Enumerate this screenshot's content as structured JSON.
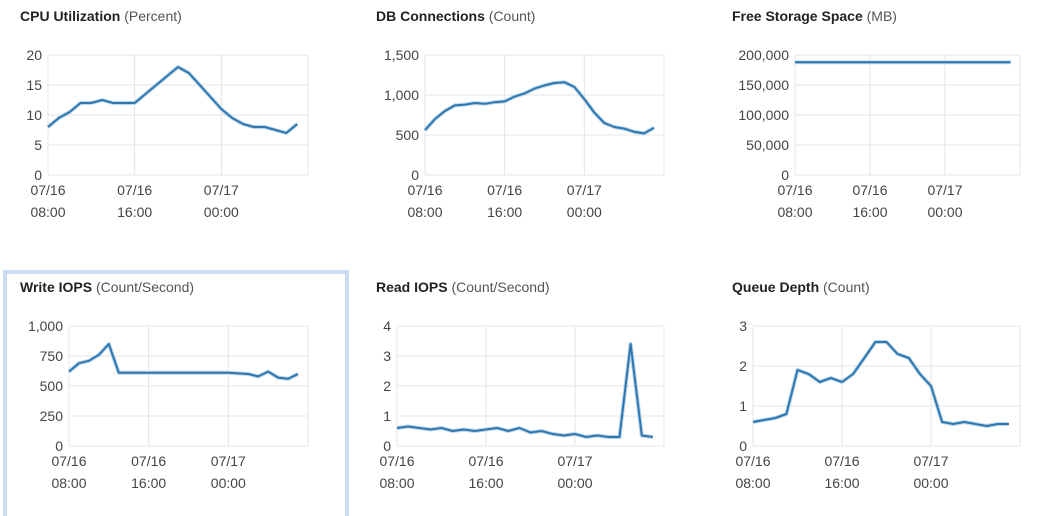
{
  "chart_data": [
    {
      "type": "line",
      "title": "CPU Utilization",
      "unit": "(Percent)",
      "color": "#2b78b3",
      "grid": true,
      "x": [
        "07/16 08:00",
        "07/16 09:00",
        "07/16 10:00",
        "07/16 11:00",
        "07/16 12:00",
        "07/16 13:00",
        "07/16 14:00",
        "07/16 15:00",
        "07/16 16:00",
        "07/16 17:00",
        "07/16 18:00",
        "07/16 19:00",
        "07/16 20:00",
        "07/16 21:00",
        "07/16 22:00",
        "07/16 23:00",
        "07/17 00:00",
        "07/17 01:00",
        "07/17 02:00",
        "07/17 03:00",
        "07/17 04:00",
        "07/17 05:00",
        "07/17 06:00",
        "07/17 07:00"
      ],
      "values": [
        8,
        9.5,
        10.5,
        12,
        12,
        12.5,
        12,
        12,
        12,
        13.5,
        15,
        16.5,
        18,
        17,
        15,
        13,
        11,
        9.5,
        8.5,
        8,
        8,
        7.5,
        7,
        8.5
      ],
      "xlim": [
        "07/16 08:00",
        "07/17 08:00"
      ],
      "xticks": [
        "07/16 08:00",
        "07/16 16:00",
        "07/17 00:00"
      ],
      "ylim": [
        0,
        20
      ],
      "yticks": [
        0,
        5,
        10,
        15,
        20
      ]
    },
    {
      "type": "line",
      "title": "DB Connections",
      "unit": "(Count)",
      "color": "#2b78b3",
      "grid": true,
      "x": [
        "07/16 08:00",
        "07/16 09:00",
        "07/16 10:00",
        "07/16 11:00",
        "07/16 12:00",
        "07/16 13:00",
        "07/16 14:00",
        "07/16 15:00",
        "07/16 16:00",
        "07/16 17:00",
        "07/16 18:00",
        "07/16 19:00",
        "07/16 20:00",
        "07/16 21:00",
        "07/16 22:00",
        "07/16 23:00",
        "07/17 00:00",
        "07/17 01:00",
        "07/17 02:00",
        "07/17 03:00",
        "07/17 04:00",
        "07/17 05:00",
        "07/17 06:00",
        "07/17 07:00"
      ],
      "values": [
        560,
        700,
        800,
        870,
        880,
        900,
        890,
        910,
        920,
        980,
        1020,
        1080,
        1120,
        1150,
        1160,
        1100,
        950,
        780,
        650,
        600,
        580,
        540,
        520,
        590
      ],
      "xlim": [
        "07/16 08:00",
        "07/17 08:00"
      ],
      "xticks": [
        "07/16 08:00",
        "07/16 16:00",
        "07/17 00:00"
      ],
      "ylim": [
        0,
        1500
      ],
      "yticks": [
        0,
        500,
        {
          "value": 1000,
          "label": "1,000"
        },
        {
          "value": 1500,
          "label": "1,500"
        }
      ]
    },
    {
      "type": "line",
      "title": "Free Storage Space",
      "unit": "(MB)",
      "color": "#2b78b3",
      "grid": true,
      "x": [
        "07/16 08:00",
        "07/16 09:00",
        "07/16 10:00",
        "07/16 11:00",
        "07/16 12:00",
        "07/16 13:00",
        "07/16 14:00",
        "07/16 15:00",
        "07/16 16:00",
        "07/16 17:00",
        "07/16 18:00",
        "07/16 19:00",
        "07/16 20:00",
        "07/16 21:00",
        "07/16 22:00",
        "07/16 23:00",
        "07/17 00:00",
        "07/17 01:00",
        "07/17 02:00",
        "07/17 03:00",
        "07/17 04:00",
        "07/17 05:00",
        "07/17 06:00",
        "07/17 07:00"
      ],
      "values": [
        188000,
        188000,
        188000,
        188000,
        188000,
        188000,
        188000,
        188000,
        188000,
        188000,
        188000,
        188000,
        188000,
        188000,
        188000,
        188000,
        188000,
        188000,
        188000,
        188000,
        188000,
        188000,
        188000,
        188000
      ],
      "xlim": [
        "07/16 08:00",
        "07/17 08:00"
      ],
      "xticks": [
        "07/16 08:00",
        "07/16 16:00",
        "07/17 00:00"
      ],
      "ylim": [
        0,
        200000
      ],
      "yticks": [
        0,
        {
          "value": 50000,
          "label": "50,000"
        },
        {
          "value": 100000,
          "label": "100,000"
        },
        {
          "value": 150000,
          "label": "150,000"
        },
        {
          "value": 200000,
          "label": "200,000"
        }
      ]
    },
    {
      "type": "line",
      "title": "Write IOPS",
      "unit": "(Count/Second)",
      "color": "#2b78b3",
      "grid": true,
      "x": [
        "07/16 08:00",
        "07/16 09:00",
        "07/16 10:00",
        "07/16 11:00",
        "07/16 12:00",
        "07/16 13:00",
        "07/16 14:00",
        "07/16 15:00",
        "07/16 16:00",
        "07/16 17:00",
        "07/16 18:00",
        "07/16 19:00",
        "07/16 20:00",
        "07/16 21:00",
        "07/16 22:00",
        "07/16 23:00",
        "07/17 00:00",
        "07/17 01:00",
        "07/17 02:00",
        "07/17 03:00",
        "07/17 04:00",
        "07/17 05:00",
        "07/17 06:00",
        "07/17 07:00"
      ],
      "values": [
        620,
        690,
        710,
        760,
        850,
        610,
        610,
        610,
        610,
        610,
        610,
        610,
        610,
        610,
        610,
        610,
        610,
        605,
        600,
        580,
        620,
        570,
        560,
        600
      ],
      "xlim": [
        "07/16 08:00",
        "07/17 08:00"
      ],
      "xticks": [
        "07/16 08:00",
        "07/16 16:00",
        "07/17 00:00"
      ],
      "ylim": [
        0,
        1000
      ],
      "yticks": [
        0,
        250,
        500,
        750,
        {
          "value": 1000,
          "label": "1,000"
        }
      ]
    },
    {
      "type": "line",
      "title": "Read IOPS",
      "unit": "(Count/Second)",
      "color": "#2b78b3",
      "grid": true,
      "x": [
        "07/16 08:00",
        "07/16 09:00",
        "07/16 10:00",
        "07/16 11:00",
        "07/16 12:00",
        "07/16 13:00",
        "07/16 14:00",
        "07/16 15:00",
        "07/16 16:00",
        "07/16 17:00",
        "07/16 18:00",
        "07/16 19:00",
        "07/16 20:00",
        "07/16 21:00",
        "07/16 22:00",
        "07/16 23:00",
        "07/17 00:00",
        "07/17 01:00",
        "07/17 02:00",
        "07/17 03:00",
        "07/17 04:00",
        "07/17 05:00",
        "07/17 06:00",
        "07/17 07:00"
      ],
      "values": [
        0.6,
        0.65,
        0.6,
        0.55,
        0.6,
        0.5,
        0.55,
        0.5,
        0.55,
        0.6,
        0.5,
        0.6,
        0.45,
        0.5,
        0.4,
        0.35,
        0.4,
        0.3,
        0.35,
        0.3,
        0.3,
        3.4,
        0.35,
        0.3
      ],
      "xlim": [
        "07/16 08:00",
        "07/17 08:00"
      ],
      "xticks": [
        "07/16 08:00",
        "07/16 16:00",
        "07/17 00:00"
      ],
      "ylim": [
        0,
        4
      ],
      "yticks": [
        0,
        1,
        2,
        3,
        4
      ]
    },
    {
      "type": "line",
      "title": "Queue Depth",
      "unit": "(Count)",
      "color": "#2b78b3",
      "grid": true,
      "x": [
        "07/16 08:00",
        "07/16 09:00",
        "07/16 10:00",
        "07/16 11:00",
        "07/16 12:00",
        "07/16 13:00",
        "07/16 14:00",
        "07/16 15:00",
        "07/16 16:00",
        "07/16 17:00",
        "07/16 18:00",
        "07/16 19:00",
        "07/16 20:00",
        "07/16 21:00",
        "07/16 22:00",
        "07/16 23:00",
        "07/17 00:00",
        "07/17 01:00",
        "07/17 02:00",
        "07/17 03:00",
        "07/17 04:00",
        "07/17 05:00",
        "07/17 06:00",
        "07/17 07:00"
      ],
      "values": [
        0.6,
        0.65,
        0.7,
        0.8,
        1.9,
        1.8,
        1.6,
        1.7,
        1.6,
        1.8,
        2.2,
        2.6,
        2.6,
        2.3,
        2.2,
        1.8,
        1.5,
        0.6,
        0.55,
        0.6,
        0.55,
        0.5,
        0.55,
        0.55
      ],
      "xlim": [
        "07/16 08:00",
        "07/17 08:00"
      ],
      "xticks": [
        "07/16 08:00",
        "07/16 16:00",
        "07/17 00:00"
      ],
      "ylim": [
        0,
        3
      ],
      "yticks": [
        0,
        1,
        2,
        3
      ]
    }
  ]
}
